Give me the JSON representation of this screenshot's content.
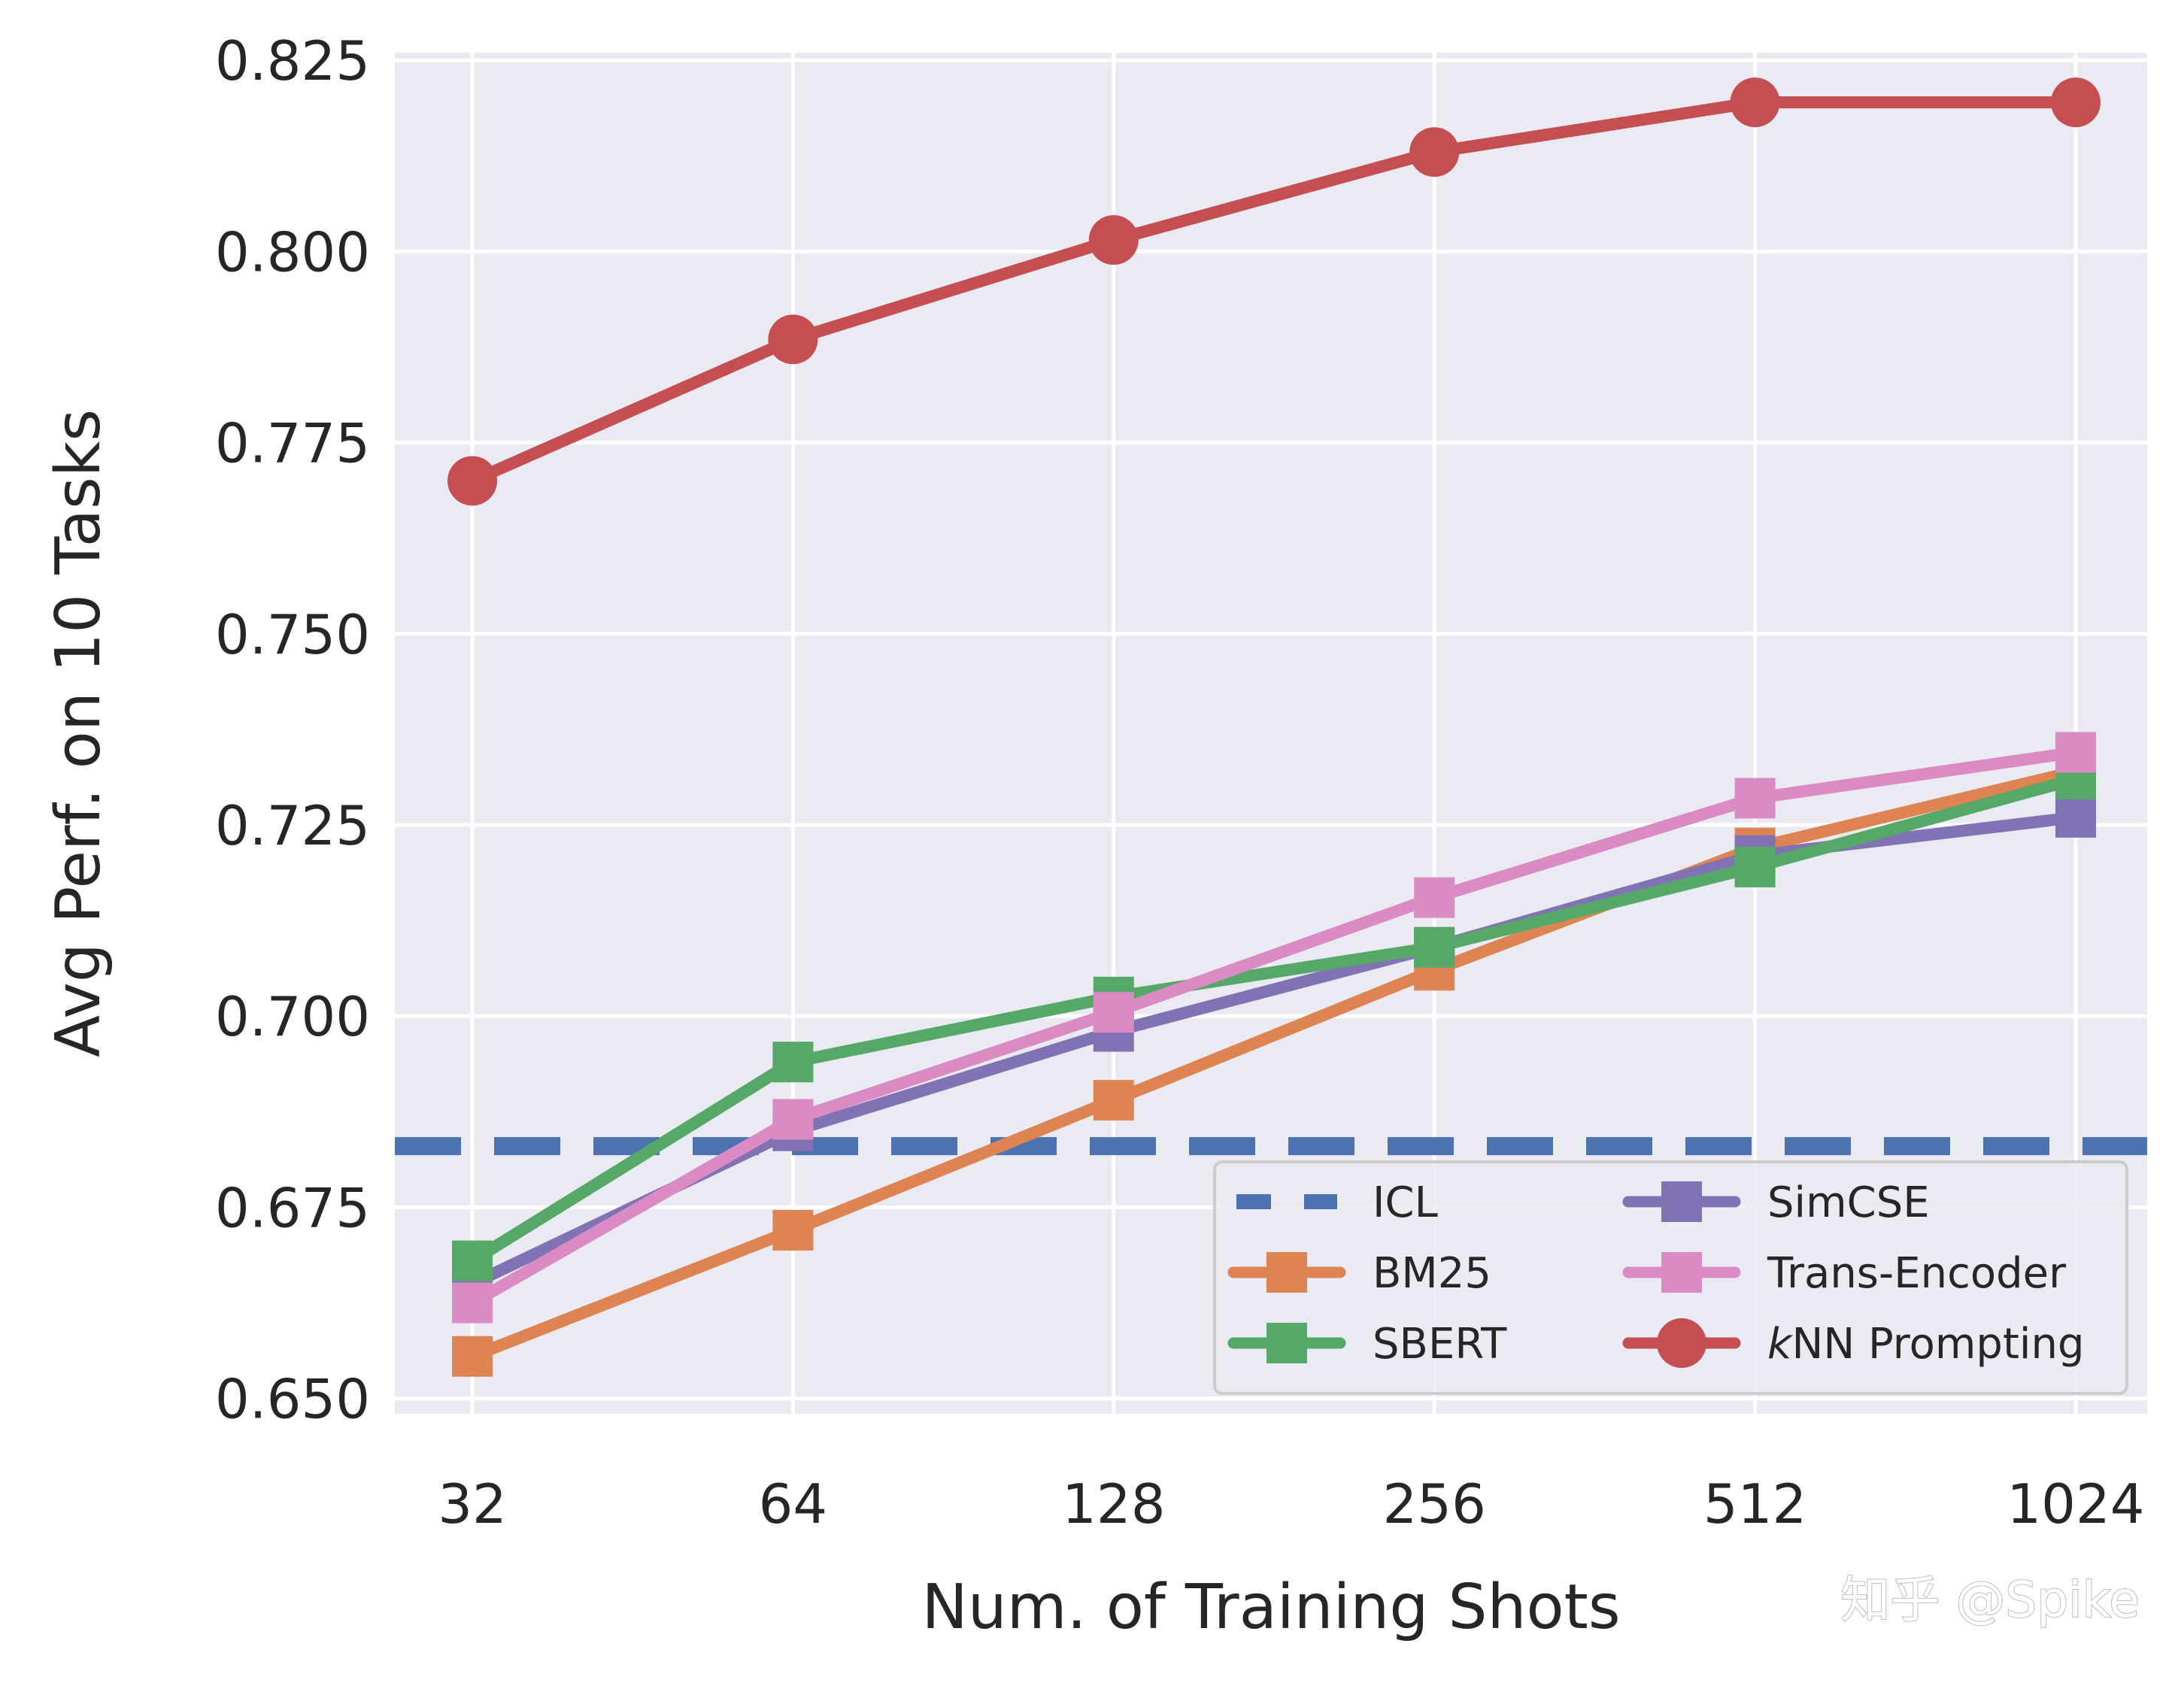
{
  "chart_data": {
    "type": "line",
    "title": "",
    "xlabel": "Num. of Training Shots",
    "ylabel": "Avg Perf. on 10 Tasks",
    "x_scale": "log2",
    "categories": [
      "32",
      "64",
      "128",
      "256",
      "512",
      "1024"
    ],
    "x": [
      32,
      64,
      128,
      256,
      512,
      1024
    ],
    "ylim": [
      0.648,
      0.826
    ],
    "yticks": [
      0.65,
      0.675,
      0.7,
      0.725,
      0.75,
      0.775,
      0.8,
      0.825
    ],
    "ytick_labels": [
      "0.650",
      "0.675",
      "0.700",
      "0.725",
      "0.750",
      "0.775",
      "0.800",
      "0.825"
    ],
    "grid": true,
    "legend_position": "lower-right",
    "legend_columns": 2,
    "series": [
      {
        "name": "ICL",
        "style": "dashed-hline",
        "marker": "none",
        "color": "#4c72b0",
        "values": [
          0.683,
          0.683,
          0.683,
          0.683,
          0.683,
          0.683
        ]
      },
      {
        "name": "BM25",
        "style": "solid",
        "marker": "square",
        "color": "#dd8452",
        "values": [
          0.6555,
          0.672,
          0.689,
          0.706,
          0.722,
          0.732
        ]
      },
      {
        "name": "SBERT",
        "style": "solid",
        "marker": "square",
        "color": "#55a868",
        "values": [
          0.668,
          0.694,
          0.7025,
          0.709,
          0.7195,
          0.731
        ]
      },
      {
        "name": "SimCSE",
        "style": "solid",
        "marker": "square",
        "color": "#8172b3",
        "values": [
          0.665,
          0.685,
          0.698,
          0.709,
          0.721,
          0.726
        ]
      },
      {
        "name": "Trans-Encoder",
        "style": "solid",
        "marker": "square",
        "color": "#da8bc3",
        "values": [
          0.6625,
          0.6865,
          0.7005,
          0.7155,
          0.7285,
          0.7345
        ]
      },
      {
        "name": "kNN Prompting",
        "legend_italic_prefix": "k",
        "legend_rest": "NN Prompting",
        "style": "solid",
        "marker": "circle",
        "color": "#c44e52",
        "values": [
          0.77,
          0.7885,
          0.8015,
          0.813,
          0.8195,
          0.8195
        ]
      }
    ]
  },
  "watermark": "知乎 @Spike"
}
